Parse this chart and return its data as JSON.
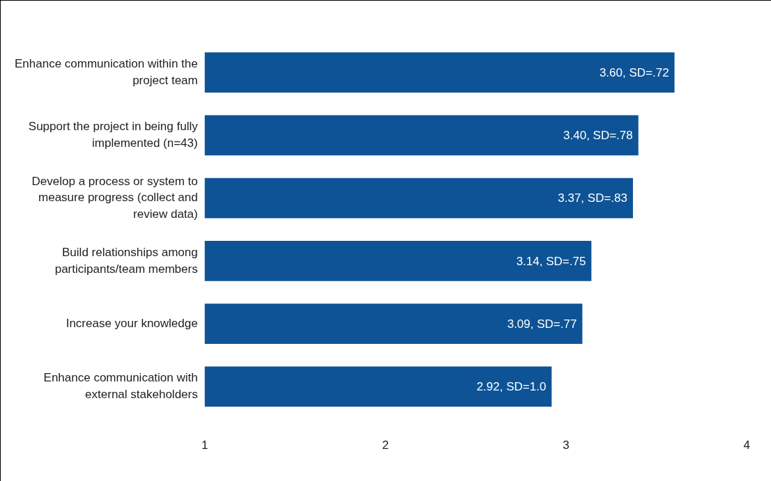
{
  "chart_data": {
    "type": "bar",
    "orientation": "horizontal",
    "categories": [
      "Enhance communication within the project team",
      "Support the project in being fully implemented (n=43)",
      "Develop a process or system to measure progress (collect and review data)",
      "Build relationships among participants/team members",
      "Increase your knowledge",
      "Enhance communication with external stakeholders"
    ],
    "values": [
      3.6,
      3.4,
      3.37,
      3.14,
      3.09,
      2.92
    ],
    "value_labels": [
      "3.60, SD=.72",
      "3.40, SD=.78",
      "3.37, SD=.83",
      "3.14, SD=.75",
      "3.09, SD=.77",
      "2.92, SD=1.0"
    ],
    "color": "#0e5395",
    "xlim": [
      1,
      4
    ],
    "xticks": [
      1,
      2,
      3,
      4
    ],
    "grid": false,
    "legend": false
  }
}
